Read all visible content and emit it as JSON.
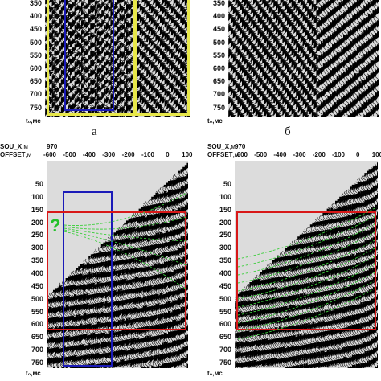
{
  "top_left_panel": {
    "y_ticks": [
      "350",
      "400",
      "450",
      "500",
      "550",
      "600",
      "650",
      "700",
      "750"
    ],
    "unit_label": "t₀,мс",
    "caption": "а"
  },
  "top_right_panel": {
    "y_ticks": [
      "350",
      "400",
      "450",
      "500",
      "550",
      "600",
      "650",
      "700",
      "750"
    ],
    "unit_label": "t₀,мс",
    "caption": "б"
  },
  "bottom_left_panel": {
    "sou_label": "SOU_X",
    "sou_unit": ",м",
    "sou_value": "970",
    "offset_label": "OFFSET",
    "offset_unit": ",м",
    "x_ticks": [
      "-600",
      "-500",
      "-400",
      "-300",
      "-200",
      "-100",
      "0",
      "100"
    ],
    "y_ticks": [
      "50",
      "100",
      "150",
      "200",
      "250",
      "300",
      "350",
      "400",
      "450",
      "500",
      "550",
      "600",
      "650",
      "700",
      "750"
    ],
    "unit_label": "t₀,мс",
    "question_mark": "?"
  },
  "bottom_right_panel": {
    "sou_label": "SOU_X",
    "sou_unit": ",м",
    "sou_value": "970",
    "offset_label": "OFFSET",
    "offset_unit": ",м",
    "x_ticks": [
      "-600",
      "-500",
      "-400",
      "-300",
      "-200",
      "-100",
      "0",
      "100"
    ],
    "y_ticks": [
      "50",
      "100",
      "150",
      "200",
      "250",
      "300",
      "350",
      "400",
      "450",
      "500",
      "550",
      "600",
      "650",
      "700",
      "750"
    ],
    "unit_label": "t₀,мс"
  },
  "colors": {
    "yellow_box": "#e8e84a",
    "blue_box": "#1a1ab8",
    "red_box": "#d81818",
    "green_lines": "#3ccf3c"
  }
}
